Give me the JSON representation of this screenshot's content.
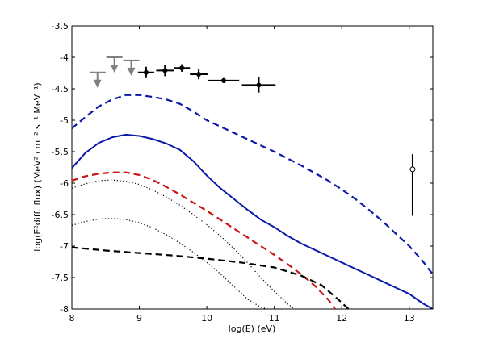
{
  "chart_data": {
    "type": "line",
    "title": "",
    "xlabel": "log(E) (eV)",
    "ylabel": "log(E²diff. flux) (MeV² cm⁻² s⁻¹ MeV⁻¹)",
    "xlim": [
      8,
      13.35
    ],
    "ylim": [
      -8,
      -3.5
    ],
    "xticks": [
      8,
      9,
      10,
      11,
      12,
      13
    ],
    "yticks": [
      -3.5,
      -4,
      -4.5,
      -5,
      -5.5,
      -6,
      -6.5,
      -7,
      -7.5,
      -8
    ],
    "series": [
      {
        "name": "blue dashed",
        "color": "#0b18a8",
        "dash": "dashed",
        "x": [
          8.0,
          8.2,
          8.4,
          8.6,
          8.8,
          9.0,
          9.2,
          9.4,
          9.6,
          9.8,
          10.0,
          10.2,
          10.4,
          10.6,
          10.8,
          11.0,
          11.2,
          11.4,
          11.6,
          11.8,
          12.0,
          12.2,
          12.4,
          12.6,
          12.8,
          13.0,
          13.2,
          13.35
        ],
        "y": [
          -5.13,
          -4.95,
          -4.78,
          -4.67,
          -4.6,
          -4.6,
          -4.63,
          -4.67,
          -4.74,
          -4.86,
          -5.0,
          -5.1,
          -5.2,
          -5.3,
          -5.4,
          -5.5,
          -5.61,
          -5.72,
          -5.84,
          -5.96,
          -6.1,
          -6.25,
          -6.42,
          -6.6,
          -6.8,
          -7.0,
          -7.24,
          -7.45
        ]
      },
      {
        "name": "blue solid",
        "color": "#0b18a8",
        "dash": "solid",
        "x": [
          8.0,
          8.2,
          8.4,
          8.6,
          8.8,
          9.0,
          9.2,
          9.4,
          9.6,
          9.8,
          10.0,
          10.2,
          10.4,
          10.6,
          10.8,
          11.0,
          11.2,
          11.4,
          11.6,
          11.8,
          12.0,
          12.2,
          12.4,
          12.6,
          12.8,
          13.0,
          13.2,
          13.35
        ],
        "y": [
          -5.76,
          -5.52,
          -5.36,
          -5.27,
          -5.23,
          -5.25,
          -5.3,
          -5.37,
          -5.47,
          -5.65,
          -5.88,
          -6.08,
          -6.25,
          -6.42,
          -6.58,
          -6.7,
          -6.84,
          -6.96,
          -7.06,
          -7.16,
          -7.26,
          -7.36,
          -7.46,
          -7.56,
          -7.66,
          -7.76,
          -7.91,
          -8.0
        ]
      },
      {
        "name": "red dashed",
        "color": "#cc1414",
        "dash": "dashed",
        "x": [
          8.0,
          8.2,
          8.4,
          8.6,
          8.8,
          9.0,
          9.2,
          9.4,
          9.6,
          9.8,
          10.0,
          10.2,
          10.4,
          10.6,
          10.8,
          11.0,
          11.2,
          11.4,
          11.6,
          11.8,
          11.9
        ],
        "y": [
          -5.96,
          -5.89,
          -5.85,
          -5.83,
          -5.83,
          -5.87,
          -5.95,
          -6.06,
          -6.18,
          -6.31,
          -6.44,
          -6.58,
          -6.72,
          -6.86,
          -7.0,
          -7.14,
          -7.29,
          -7.45,
          -7.63,
          -7.85,
          -8.0
        ]
      },
      {
        "name": "black dashed",
        "color": "#000000",
        "dash": "dashed",
        "x": [
          8.0,
          8.5,
          9.0,
          9.5,
          10.0,
          10.5,
          11.0,
          11.4,
          11.7,
          11.95,
          12.1
        ],
        "y": [
          -7.02,
          -7.07,
          -7.11,
          -7.15,
          -7.2,
          -7.26,
          -7.34,
          -7.47,
          -7.62,
          -7.85,
          -8.0
        ]
      },
      {
        "name": "dotted upper",
        "color": "#000000",
        "dash": "dotted",
        "x": [
          8.0,
          8.2,
          8.4,
          8.6,
          8.8,
          9.0,
          9.2,
          9.4,
          9.6,
          9.8,
          10.0,
          10.2,
          10.4,
          10.6,
          10.8,
          11.0,
          11.2,
          11.3
        ],
        "y": [
          -6.08,
          -6.01,
          -5.96,
          -5.95,
          -5.97,
          -6.02,
          -6.11,
          -6.22,
          -6.35,
          -6.5,
          -6.66,
          -6.84,
          -7.04,
          -7.26,
          -7.5,
          -7.72,
          -7.92,
          -8.0
        ]
      },
      {
        "name": "dotted lower",
        "color": "#000000",
        "dash": "dotted",
        "x": [
          8.0,
          8.2,
          8.4,
          8.6,
          8.8,
          9.0,
          9.2,
          9.4,
          9.6,
          9.8,
          10.0,
          10.2,
          10.4,
          10.6,
          10.8,
          10.9
        ],
        "y": [
          -6.67,
          -6.61,
          -6.57,
          -6.56,
          -6.58,
          -6.63,
          -6.71,
          -6.82,
          -6.95,
          -7.1,
          -7.26,
          -7.44,
          -7.64,
          -7.84,
          -7.97,
          -8.0
        ]
      }
    ],
    "data_points": [
      {
        "x": 9.1,
        "y": -4.24,
        "xerr": 0.12,
        "yerr": 0.09
      },
      {
        "x": 9.38,
        "y": -4.21,
        "xerr": 0.13,
        "yerr": 0.09
      },
      {
        "x": 9.63,
        "y": -4.17,
        "xerr": 0.12,
        "yerr": 0.06
      },
      {
        "x": 9.88,
        "y": -4.27,
        "xerr": 0.13,
        "yerr": 0.08
      },
      {
        "x": 10.25,
        "y": -4.37,
        "xerr": 0.23,
        "yerr": 0.04
      },
      {
        "x": 10.77,
        "y": -4.44,
        "xerr": 0.25,
        "yerr": 0.12
      }
    ],
    "upper_limits": [
      {
        "x": 8.38,
        "y": -4.24,
        "color": "#808080"
      },
      {
        "x": 8.63,
        "y": -4.0,
        "color": "#808080"
      },
      {
        "x": 8.88,
        "y": -4.05,
        "color": "#808080"
      }
    ],
    "marker_point": {
      "x": 13.05,
      "y": -5.78,
      "y_low": -6.52,
      "y_high": -5.54
    }
  }
}
